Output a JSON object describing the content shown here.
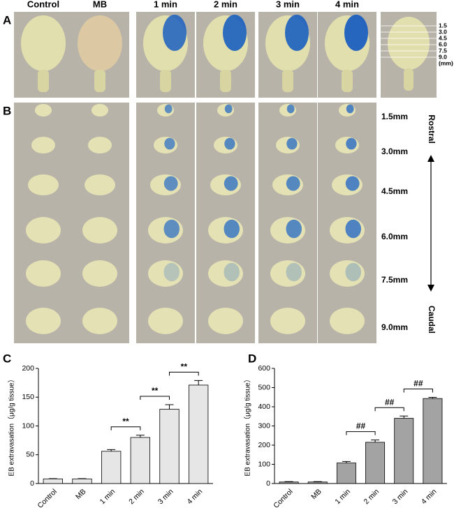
{
  "figure": {
    "panel_labels": [
      "A",
      "B",
      "C",
      "D"
    ],
    "columns": [
      "Control",
      "MB",
      "1 min",
      "2 min",
      "3 min",
      "4 min"
    ],
    "depth_ticks": [
      "1.5",
      "3.0",
      "4.5",
      "6.0",
      "7.5",
      "9.0",
      "(mm)"
    ],
    "slice_labels": [
      "1.5mm",
      "3.0mm",
      "4.5mm",
      "6.0mm",
      "7.5mm",
      "9.0mm"
    ],
    "direction_labels": [
      "Rostral",
      "Caudal"
    ]
  },
  "chart_data": [
    {
      "type": "bar",
      "ylabel": "EB extravasation（μg/g tissue）",
      "categories": [
        "Control",
        "MB",
        "1 min",
        "2 min",
        "3 min",
        "4 min"
      ],
      "values": [
        8,
        8,
        56,
        80,
        129,
        171
      ],
      "errors": [
        0.5,
        0.5,
        3,
        4,
        8,
        8
      ],
      "color": "#e6e6e6",
      "ylim": [
        0,
        200
      ],
      "yticks": [
        0,
        50,
        100,
        150,
        200
      ],
      "annotations": [
        "**",
        "**",
        "**"
      ]
    },
    {
      "type": "bar",
      "ylabel": "EB extravasation（μg/g tissue）",
      "categories": [
        "Control",
        "MB",
        "1 min",
        "2 min",
        "3 min",
        "4 min"
      ],
      "values": [
        8,
        8,
        107,
        215,
        340,
        443
      ],
      "errors": [
        2,
        2,
        8,
        12,
        12,
        6
      ],
      "color": "#a3a3a3",
      "ylim": [
        0,
        600
      ],
      "yticks": [
        0,
        100,
        200,
        300,
        400,
        500,
        600
      ],
      "annotations": [
        "##",
        "##",
        "##"
      ]
    }
  ]
}
